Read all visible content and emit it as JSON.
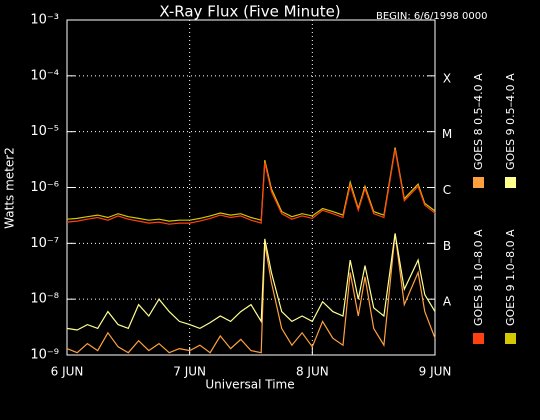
{
  "chart_data": {
    "type": "line",
    "title": "X-Ray Flux (Five Minute)",
    "subtitle": "BEGIN: 6/6/1998 0000",
    "ylabel": "Watts meter2",
    "xlabel": "Universal Time",
    "log_y": true,
    "grid": true,
    "ylim": [
      1e-09,
      0.001
    ],
    "yticks": [
      {
        "value": 1e-09,
        "label": "10⁻⁹"
      },
      {
        "value": 1e-08,
        "label": "10⁻⁸"
      },
      {
        "value": 1e-07,
        "label": "10⁻⁷"
      },
      {
        "value": 1e-06,
        "label": "10⁻⁶"
      },
      {
        "value": 1e-05,
        "label": "10⁻⁵"
      },
      {
        "value": 0.0001,
        "label": "10⁻⁴"
      },
      {
        "value": 0.001,
        "label": "10⁻³"
      }
    ],
    "xlim": [
      0,
      72
    ],
    "xticks": [
      {
        "value": 0,
        "label": "6 JUN"
      },
      {
        "value": 24,
        "label": "7 JUN"
      },
      {
        "value": 48,
        "label": "8 JUN"
      },
      {
        "value": 72,
        "label": "9 JUN"
      }
    ],
    "flare_classes": [
      {
        "value": 0.0001,
        "label": "X"
      },
      {
        "value": 1e-05,
        "label": "M"
      },
      {
        "value": 1e-06,
        "label": "C"
      },
      {
        "value": 1e-07,
        "label": "B"
      },
      {
        "value": 1e-08,
        "label": "A"
      }
    ],
    "x": [
      0,
      2,
      4,
      6,
      8,
      10,
      12,
      14,
      16,
      18,
      20,
      22,
      24,
      26,
      28,
      30,
      32,
      34,
      36,
      38,
      38.7,
      40,
      42,
      44,
      46,
      48,
      50,
      52,
      54,
      55.4,
      57,
      58.3,
      60,
      62,
      64.2,
      66,
      68.7,
      70,
      72
    ],
    "series": [
      {
        "name": "GOES 8 1.0–8.0 A",
        "color": "#ff4010",
        "values": [
          2.4e-07,
          2.5e-07,
          2.7e-07,
          2.9e-07,
          2.6e-07,
          3.1e-07,
          2.7e-07,
          2.5e-07,
          2.3e-07,
          2.4e-07,
          2.2e-07,
          2.3e-07,
          2.3e-07,
          2.5e-07,
          2.8e-07,
          3.2e-07,
          2.9e-07,
          3.1e-07,
          2.6e-07,
          2.3e-07,
          2.8e-06,
          8.5e-07,
          3.4e-07,
          2.7e-07,
          3.1e-07,
          2.8e-07,
          3.9e-07,
          3.4e-07,
          2.9e-07,
          1.1e-06,
          3.9e-07,
          9.5e-07,
          3.4e-07,
          2.9e-07,
          4.8e-06,
          5.8e-07,
          1.05e-06,
          4.8e-07,
          3.5e-07
        ]
      },
      {
        "name": "GOES 8 0.5–4.0 A",
        "color": "#ffa040",
        "values": [
          1.3e-09,
          1.1e-09,
          1.6e-09,
          1.2e-09,
          2.5e-09,
          1.4e-09,
          1.1e-09,
          1.8e-09,
          1.2e-09,
          1.6e-09,
          1.1e-09,
          1.3e-09,
          1.2e-09,
          1.5e-09,
          1.1e-09,
          2.2e-09,
          1.3e-09,
          1.9e-09,
          1.2e-09,
          1.1e-09,
          1e-07,
          2e-08,
          3e-09,
          1.5e-09,
          2.5e-09,
          1.4e-09,
          4e-09,
          2e-09,
          1.5e-09,
          3e-08,
          5e-09,
          2.5e-08,
          3e-09,
          1.5e-09,
          1.5e-07,
          8e-09,
          3e-08,
          6e-09,
          2e-09
        ]
      },
      {
        "name": "GOES 9 1.0–8.0 A",
        "color": "#d4c800",
        "values": [
          2.7e-07,
          2.8e-07,
          3e-07,
          3.2e-07,
          2.9e-07,
          3.4e-07,
          3e-07,
          2.8e-07,
          2.6e-07,
          2.7e-07,
          2.5e-07,
          2.6e-07,
          2.6e-07,
          2.8e-07,
          3.1e-07,
          3.5e-07,
          3.2e-07,
          3.4e-07,
          2.9e-07,
          2.6e-07,
          3.1e-06,
          9.5e-07,
          3.7e-07,
          3e-07,
          3.4e-07,
          3.1e-07,
          4.2e-07,
          3.7e-07,
          3.2e-07,
          1.25e-06,
          4.2e-07,
          1.05e-06,
          3.7e-07,
          3.2e-07,
          5.2e-06,
          6.3e-07,
          1.15e-06,
          5.2e-07,
          3.8e-07
        ]
      },
      {
        "name": "GOES 9 0.5–4.0 A",
        "color": "#ffff90",
        "values": [
          3e-09,
          2.8e-09,
          3.5e-09,
          3e-09,
          6e-09,
          3.5e-09,
          3e-09,
          8e-09,
          5e-09,
          1e-08,
          6e-09,
          4e-09,
          3.5e-09,
          3e-09,
          3.8e-09,
          5e-09,
          4e-09,
          6e-09,
          8e-09,
          4e-09,
          1.2e-07,
          3e-08,
          6e-09,
          4e-09,
          5e-09,
          4e-09,
          9e-09,
          6e-09,
          5e-09,
          5e-08,
          1e-08,
          4e-08,
          7e-09,
          5e-09,
          1.5e-07,
          1.5e-08,
          5e-08,
          1.2e-08,
          6e-09
        ]
      }
    ]
  }
}
